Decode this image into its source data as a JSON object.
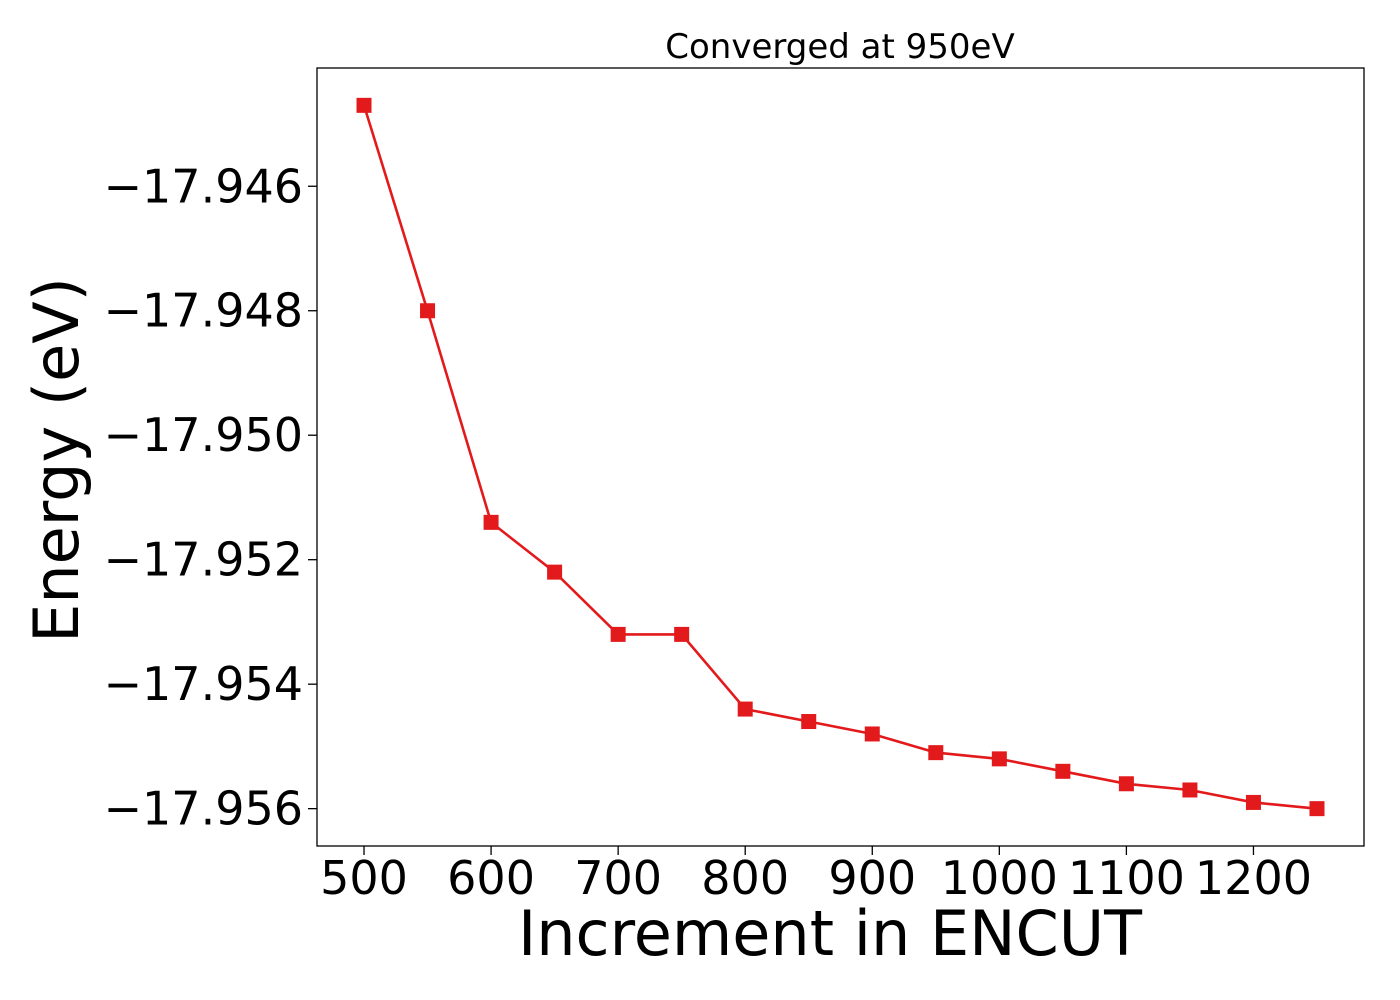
{
  "chart_data": {
    "type": "line",
    "title": "Converged at 950eV",
    "xlabel": "Increment in ENCUT",
    "ylabel": "Energy (eV)",
    "xlim": [
      463,
      1287
    ],
    "ylim": [
      -17.9566,
      -17.9441
    ],
    "xticks": [
      500,
      600,
      700,
      800,
      900,
      1000,
      1100,
      1200
    ],
    "xtick_labels": [
      "500",
      "600",
      "700",
      "800",
      "900",
      "1000",
      "1100",
      "1200"
    ],
    "yticks": [
      -17.946,
      -17.948,
      -17.95,
      -17.952,
      -17.954,
      -17.956
    ],
    "ytick_labels": [
      "−17.946",
      "−17.948",
      "−17.950",
      "−17.952",
      "−17.954",
      "−17.956"
    ],
    "grid": false,
    "legend": "none",
    "series": [
      {
        "color": "#e31a1c",
        "marker": "square",
        "x": [
          500,
          550,
          600,
          650,
          700,
          750,
          800,
          850,
          900,
          950,
          1000,
          1050,
          1100,
          1150,
          1200,
          1250
        ],
        "y": [
          -17.9447,
          -17.948,
          -17.9514,
          -17.9522,
          -17.9532,
          -17.9532,
          -17.9544,
          -17.9546,
          -17.9548,
          -17.9551,
          -17.9552,
          -17.9554,
          -17.9556,
          -17.9557,
          -17.9559,
          -17.956
        ]
      }
    ]
  }
}
